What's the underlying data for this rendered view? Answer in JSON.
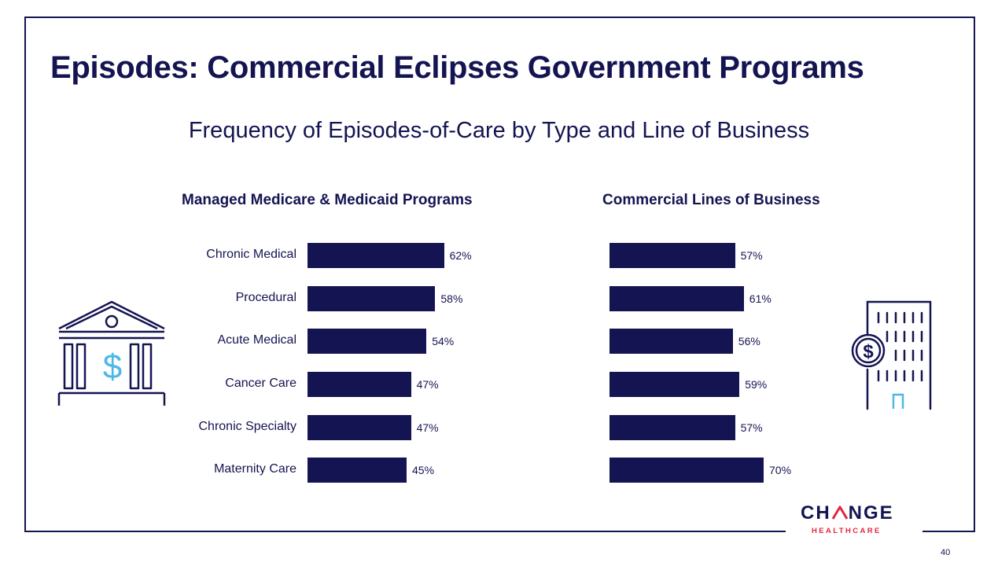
{
  "slide": {
    "title": "Episodes: Commercial Eclipses Government Programs",
    "subtitle": "Frequency of Episodes-of-Care by Type and Line of Business",
    "page_number": "40"
  },
  "logo": {
    "main_left": "CH",
    "main_right": "NGE",
    "sub": "HEALTHCARE"
  },
  "colors": {
    "bar": "#141452",
    "text": "#141452",
    "icon_accent": "#4cb8e8",
    "logo_red": "#e3253f"
  },
  "icons": {
    "left": "bank-building-dollar-icon",
    "right": "office-building-dollar-icon"
  },
  "chart_data": [
    {
      "type": "bar",
      "orientation": "horizontal",
      "title": "Managed Medicare & Medicaid Programs",
      "categories": [
        "Chronic Medical",
        "Procedural",
        "Acute Medical",
        "Cancer Care",
        "Chronic Specialty",
        "Maternity Care"
      ],
      "values": [
        62,
        58,
        54,
        47,
        47,
        45
      ],
      "value_labels": [
        "62%",
        "58%",
        "54%",
        "47%",
        "47%",
        "45%"
      ],
      "unit": "%"
    },
    {
      "type": "bar",
      "orientation": "horizontal",
      "title": "Commercial Lines of Business",
      "categories": [
        "Chronic Medical",
        "Procedural",
        "Acute Medical",
        "Cancer Care",
        "Chronic Specialty",
        "Maternity Care"
      ],
      "values": [
        57,
        61,
        56,
        59,
        57,
        70
      ],
      "value_labels": [
        "57%",
        "61%",
        "56%",
        "59%",
        "57%",
        "70%"
      ],
      "unit": "%"
    }
  ]
}
